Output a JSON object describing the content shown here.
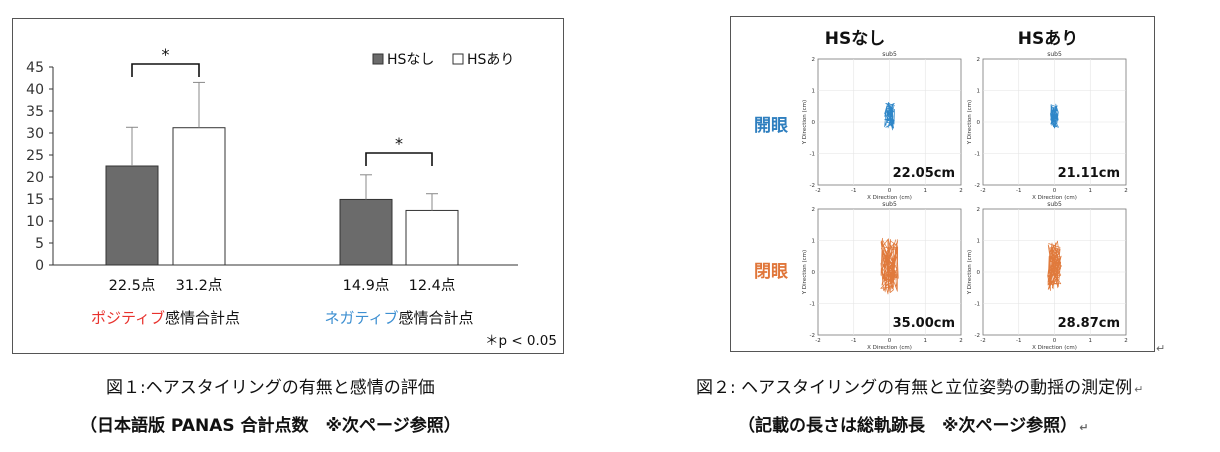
{
  "figure1": {
    "chart_data": {
      "type": "bar",
      "groups": [
        "ポジティブ感情合計点",
        "ネガティブ感情合計点"
      ],
      "series": [
        {
          "name": "HSなし",
          "color": "#6b6b6b",
          "values": [
            22.5,
            14.9
          ],
          "errors": [
            8.8,
            5.6
          ]
        },
        {
          "name": "HSあり",
          "color": "#ffffff",
          "values": [
            31.2,
            12.4
          ],
          "errors": [
            10.3,
            3.8
          ]
        }
      ],
      "ylim": [
        0,
        45
      ],
      "yticks": [
        "0",
        "5",
        "10",
        "15",
        "20",
        "25",
        "30",
        "35",
        "40",
        "45"
      ],
      "value_labels": [
        [
          "22.5点",
          "31.2点"
        ],
        [
          "14.9点",
          "12.4点"
        ]
      ],
      "group_labels": [
        {
          "colored": "ポジティブ",
          "rest": "感情合計点",
          "color": "#e8322d"
        },
        {
          "colored": "ネガティブ",
          "rest": "感情合計点",
          "color": "#3d8fd1"
        }
      ],
      "significance": [
        "*",
        "*"
      ],
      "footnote": "＊p < 0.05",
      "legend": [
        "HSなし",
        "HSあり"
      ],
      "legend_position": "top-right"
    },
    "caption_line1": "図１:ヘアスタイリングの有無と感情の評価",
    "caption_line2": "（日本語版 PANAS  合計点数　※次ページ参照）"
  },
  "figure2": {
    "col_headers": [
      "HSなし",
      "HSあり"
    ],
    "row_labels": [
      {
        "label": "開眼",
        "color": "#2f7fbf"
      },
      {
        "label": "閉眼",
        "color": "#e0763a"
      }
    ],
    "plots": [
      {
        "sub": "sub5",
        "value": "22.05cm",
        "color": "#2e86c8"
      },
      {
        "sub": "sub5",
        "value": "21.11cm",
        "color": "#2e86c8"
      },
      {
        "sub": "sub5",
        "value": "35.00cm",
        "color": "#e07a3c"
      },
      {
        "sub": "sub5",
        "value": "28.87cm",
        "color": "#e07a3c"
      }
    ],
    "xlabel": "X Direction (cm)",
    "ylabel": "Y Direction (cm)",
    "ticks": [
      "-2",
      "-1",
      "0",
      "1",
      "2"
    ],
    "caption_line1": "図２: ヘアスタイリングの有無と立位姿勢の動揺の測定例",
    "caption_line2": "（記載の長さは総軌跡長　※次ページ参照）"
  },
  "return_mark": "↵"
}
